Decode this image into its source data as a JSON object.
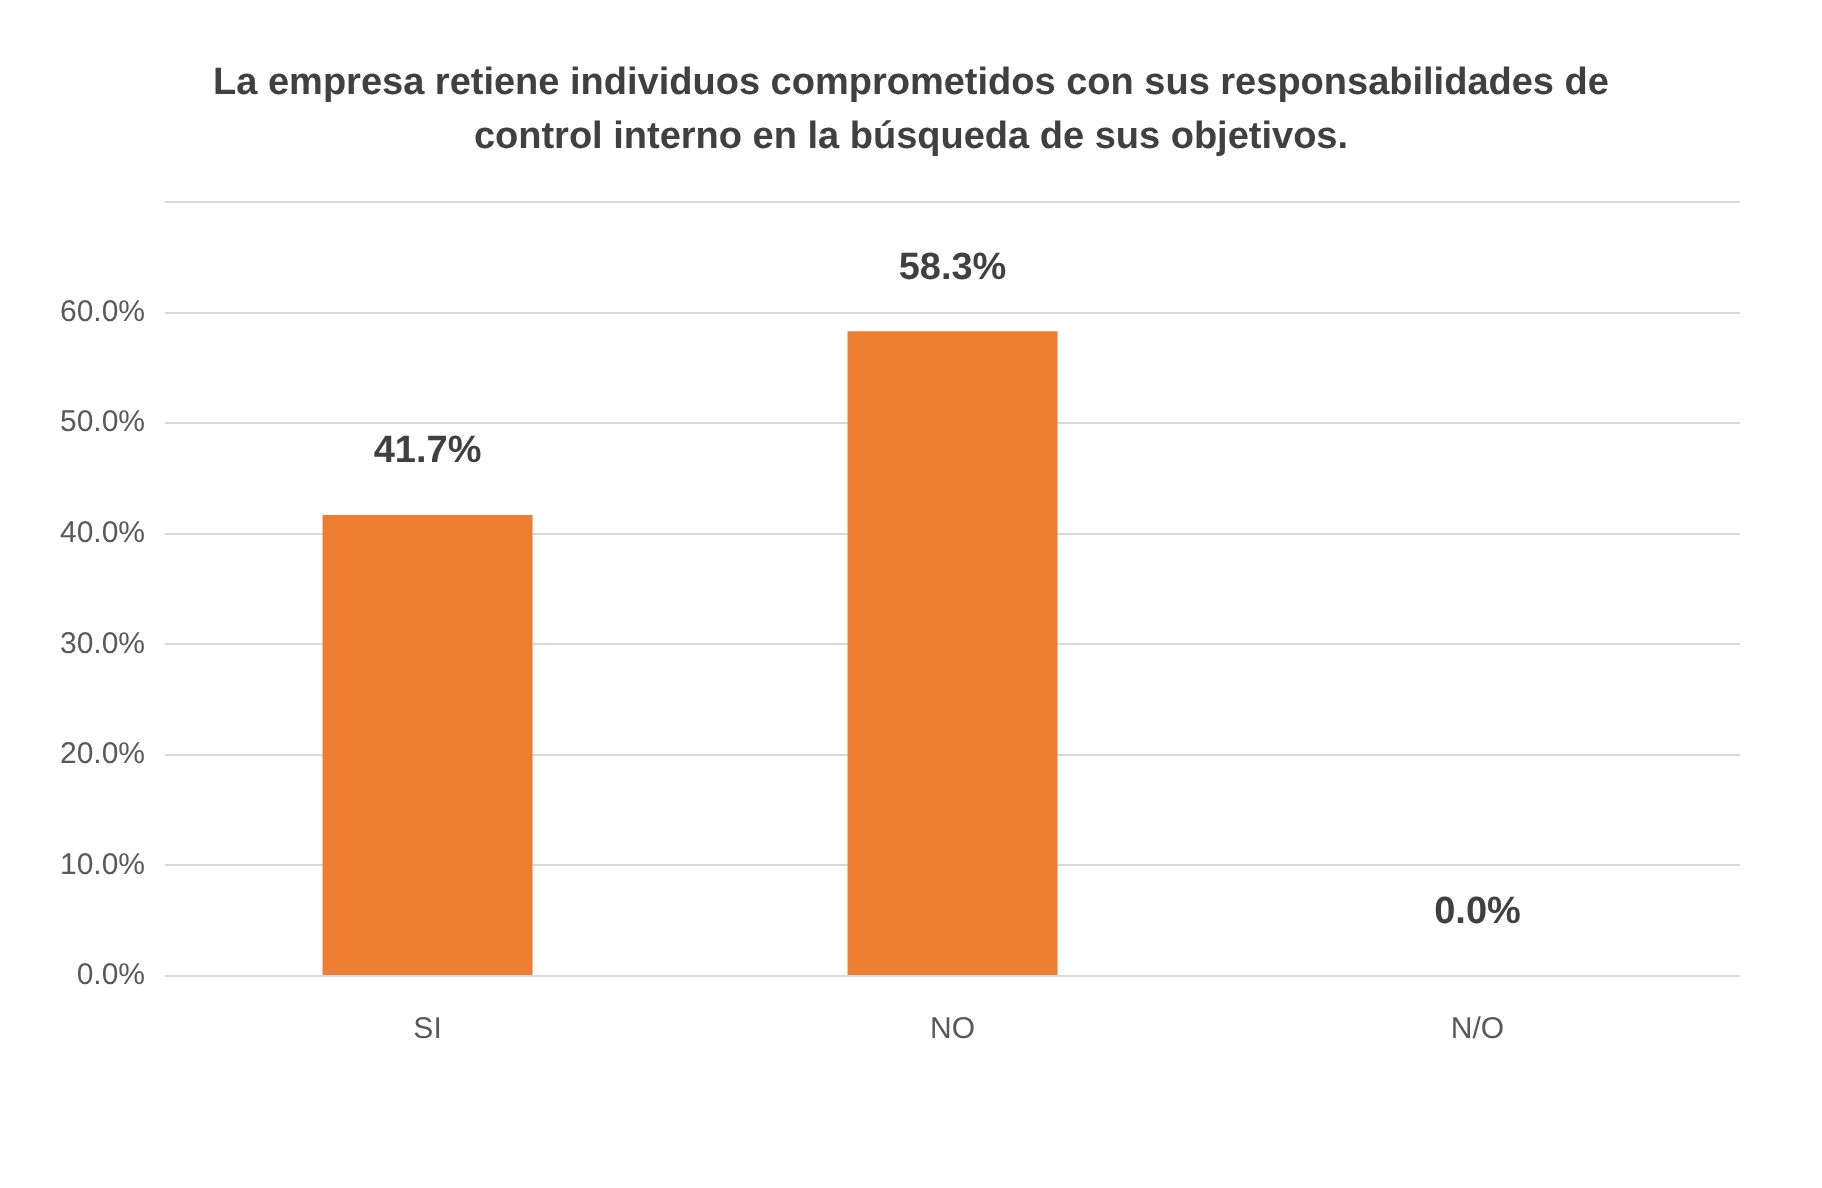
{
  "chart_data": {
    "type": "bar",
    "title": "La empresa retiene individuos comprometidos con sus responsabilidades de control interno en la búsqueda de sus objetivos.",
    "categories": [
      "SI",
      "NO",
      "N/O"
    ],
    "values": [
      41.7,
      58.3,
      0.0
    ],
    "value_labels": [
      "41.7%",
      "58.3%",
      "0.0%"
    ],
    "color": "#ed7d31",
    "ylim": [
      0,
      70
    ],
    "yticks": [
      {
        "value": 0,
        "label": "0.0%"
      },
      {
        "value": 10,
        "label": "10.0%"
      },
      {
        "value": 20,
        "label": "20.0%"
      },
      {
        "value": 30,
        "label": "30.0%"
      },
      {
        "value": 40,
        "label": "40.0%"
      },
      {
        "value": 50,
        "label": "50.0%"
      },
      {
        "value": 60,
        "label": "60.0%"
      },
      {
        "value": 70,
        "label": null
      }
    ],
    "grid": "y",
    "legend": false
  }
}
